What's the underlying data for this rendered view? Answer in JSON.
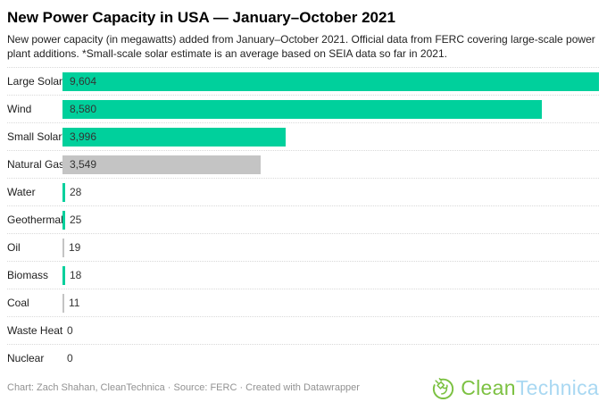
{
  "header": {
    "title": "New Power Capacity in USA — January–October 2021",
    "description": "New power capacity (in megawatts) added from January–October 2021. Official data from FERC covering large-scale power plant additions. *Small-scale solar estimate is an average based on SEIA data so far in 2021."
  },
  "chart_data": {
    "type": "bar",
    "orientation": "horizontal",
    "unit": "megawatts",
    "title": "New Power Capacity in USA — January–October 2021",
    "xlabel": "",
    "ylabel": "",
    "xlim": [
      0,
      9604
    ],
    "grid": "dotted-row-separators",
    "legend": "none",
    "categories": [
      "Large Solar",
      "Wind",
      "Small Solar*",
      "Natural Gas",
      "Water",
      "Geothermal",
      "Oil",
      "Biomass",
      "Coal",
      "Waste Heat",
      "Nuclear"
    ],
    "values": [
      9604,
      8580,
      3996,
      3549,
      28,
      25,
      19,
      18,
      11,
      0,
      0
    ],
    "value_labels": [
      "9,604",
      "8,580",
      "3,996",
      "3,549",
      "28",
      "25",
      "19",
      "18",
      "11",
      "0",
      "0"
    ],
    "bar_colors": [
      "green",
      "green",
      "green",
      "gray",
      "green",
      "green",
      "gray",
      "green",
      "gray",
      "none",
      "none"
    ],
    "palette": {
      "green": "#00d09c",
      "gray": "#c4c4c4"
    }
  },
  "footer": {
    "credit": "Chart: Zach Shahan, CleanTechnica · Source: FERC · Created with Datawrapper"
  },
  "logo": {
    "icon": "cleantechnica-plug-circle-icon",
    "text_green": "Clean",
    "text_blue": "Technica",
    "color_green": "#7cc142",
    "color_blue": "#a9d8f2"
  }
}
